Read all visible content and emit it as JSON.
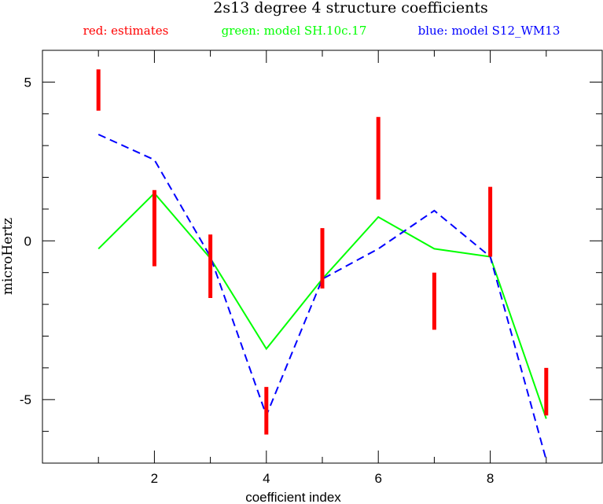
{
  "chart_data": {
    "type": "line",
    "title": "2s13 degree 4 structure coefficients",
    "xlabel": "coefficient index",
    "ylabel": "microHertz",
    "xlim": [
      0,
      10
    ],
    "ylim": [
      -7,
      6
    ],
    "x_ticks": [
      2,
      4,
      6,
      8
    ],
    "y_ticks": [
      -5,
      0,
      5
    ],
    "grid": false,
    "legend": [
      {
        "label": "red: estimates",
        "color": "#ff0000"
      },
      {
        "label": "green: model SH.10c.17",
        "color": "#00ff00"
      },
      {
        "label": "blue: model S12_WM13",
        "color": "#0000ff"
      }
    ],
    "estimates": {
      "name": "estimates",
      "color": "#ff0000",
      "x": [
        1,
        2,
        3,
        4,
        5,
        6,
        7,
        8,
        9
      ],
      "low": [
        4.1,
        -0.8,
        -1.8,
        -6.1,
        -1.5,
        1.3,
        -2.8,
        -0.5,
        -5.5
      ],
      "high": [
        5.4,
        1.6,
        0.2,
        -4.6,
        0.4,
        3.9,
        -1.0,
        1.7,
        -4.0
      ]
    },
    "series": [
      {
        "name": "model SH.10c.17",
        "color": "#00ff00",
        "style": "solid",
        "x": [
          1,
          2,
          3,
          4,
          5,
          6,
          7,
          8,
          9
        ],
        "values": [
          -0.25,
          1.5,
          -0.55,
          -3.4,
          -1.2,
          0.75,
          -0.25,
          -0.5,
          -5.6
        ]
      },
      {
        "name": "model S12_WM13",
        "color": "#0000ff",
        "style": "dashed",
        "x": [
          1,
          2,
          3,
          4,
          5,
          6,
          7,
          8,
          9
        ],
        "values": [
          3.35,
          2.55,
          -0.5,
          -5.5,
          -1.2,
          -0.25,
          0.95,
          -0.5,
          -6.9
        ]
      }
    ]
  }
}
